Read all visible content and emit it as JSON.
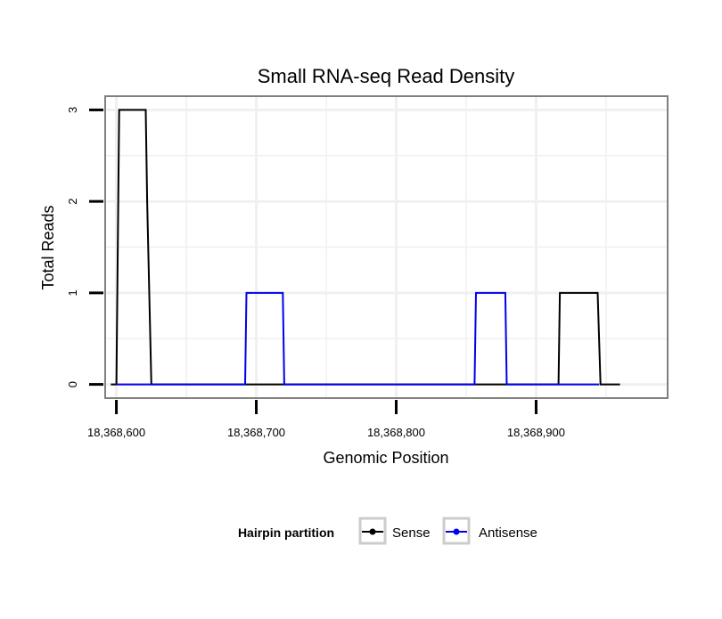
{
  "chart_data": {
    "type": "line",
    "title": "Small RNA-seq Read Density",
    "xlabel": "Genomic Position",
    "ylabel": "Total Reads",
    "xlim": [
      18368592,
      18368994
    ],
    "ylim": [
      -0.15,
      3.15
    ],
    "x_ticks": [
      18368600,
      18368700,
      18368800,
      18368900
    ],
    "x_tick_labels": [
      "18,368,600",
      "18,368,700",
      "18,368,800",
      "18,368,900"
    ],
    "y_ticks": [
      0,
      1,
      2,
      3
    ],
    "y_tick_labels": [
      "0",
      "1",
      "2",
      "3"
    ],
    "grid": true,
    "legend_position": "bottom",
    "legend": {
      "title": "Hairpin partition",
      "entries": [
        "Sense",
        "Antisense"
      ]
    },
    "colors": {
      "sense": "#000000",
      "antisense": "#0000ee",
      "grid": "#f0f0f0",
      "panel_border": "#7f7f7f",
      "legend_key_border": "#cccccc"
    },
    "series": [
      {
        "name": "Sense",
        "color": "#000000",
        "x": [
          18368596,
          18368600,
          18368602,
          18368621,
          18368622,
          18368625,
          18368916,
          18368917,
          18368944,
          18368946,
          18368960
        ],
        "y": [
          0,
          0,
          3,
          3,
          2,
          0,
          0,
          1,
          1,
          0,
          0
        ]
      },
      {
        "name": "Antisense",
        "color": "#0000ee",
        "x": [
          18368600,
          18368692,
          18368693,
          18368719,
          18368720,
          18368856,
          18368857,
          18368878,
          18368879,
          18368945
        ],
        "y": [
          0,
          0,
          1,
          1,
          0,
          0,
          1,
          1,
          0,
          0
        ]
      }
    ]
  }
}
